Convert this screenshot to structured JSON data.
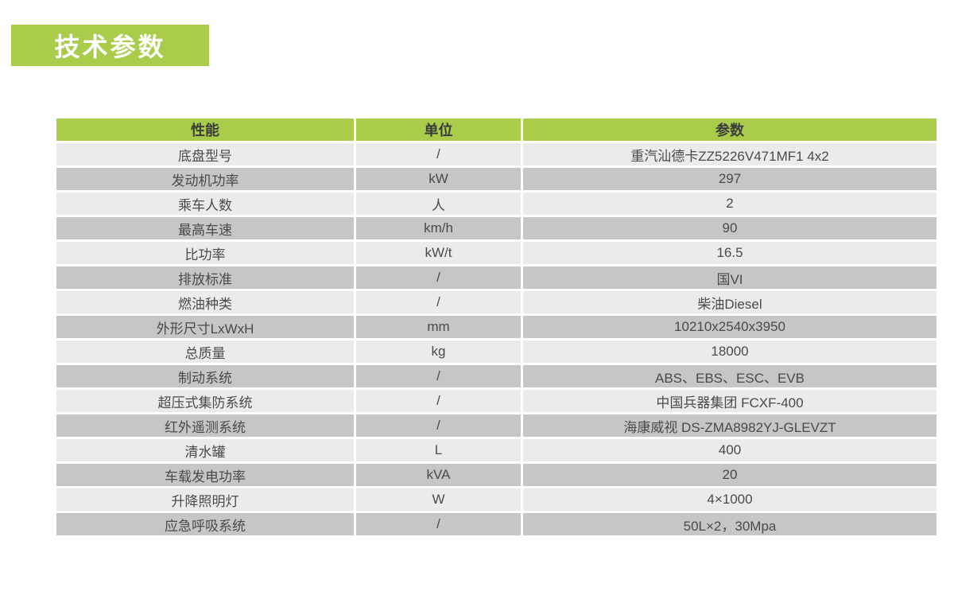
{
  "title": {
    "text": "技术参数"
  },
  "theme": {
    "green": "#a9cd4a",
    "row_light": "#ebebeb",
    "row_dark": "#c6c6c6",
    "cell_text": "#4a4a4a",
    "header_text": "#3c3c3c",
    "title_text": "#ffffff"
  },
  "table": {
    "columns": [
      "性能",
      "单位",
      "参数"
    ],
    "rows": [
      [
        "底盘型号",
        "/",
        "重汽汕德卡ZZ5226V471MF1 4x2"
      ],
      [
        "发动机功率",
        "kW",
        "297"
      ],
      [
        "乘车人数",
        "人",
        "2"
      ],
      [
        "最高车速",
        "km/h",
        "90"
      ],
      [
        "比功率",
        "kW/t",
        "16.5"
      ],
      [
        "排放标准",
        "/",
        "国VI"
      ],
      [
        "燃油种类",
        "/",
        "柴油Diesel"
      ],
      [
        "外形尺寸LxWxH",
        "mm",
        "10210x2540x3950"
      ],
      [
        "总质量",
        "kg",
        "18000"
      ],
      [
        "制动系统",
        "/",
        "ABS、EBS、ESC、EVB"
      ],
      [
        "超压式集防系统",
        "/",
        "中国兵器集团 FCXF-400"
      ],
      [
        "红外遥测系统",
        "/",
        "海康威视 DS-ZMA8982YJ-GLEVZT"
      ],
      [
        "清水罐",
        "L",
        "400"
      ],
      [
        "车载发电功率",
        "kVA",
        "20"
      ],
      [
        "升降照明灯",
        "W",
        "4×1000"
      ],
      [
        "应急呼吸系统",
        "/",
        "50L×2，30Mpa"
      ]
    ]
  }
}
